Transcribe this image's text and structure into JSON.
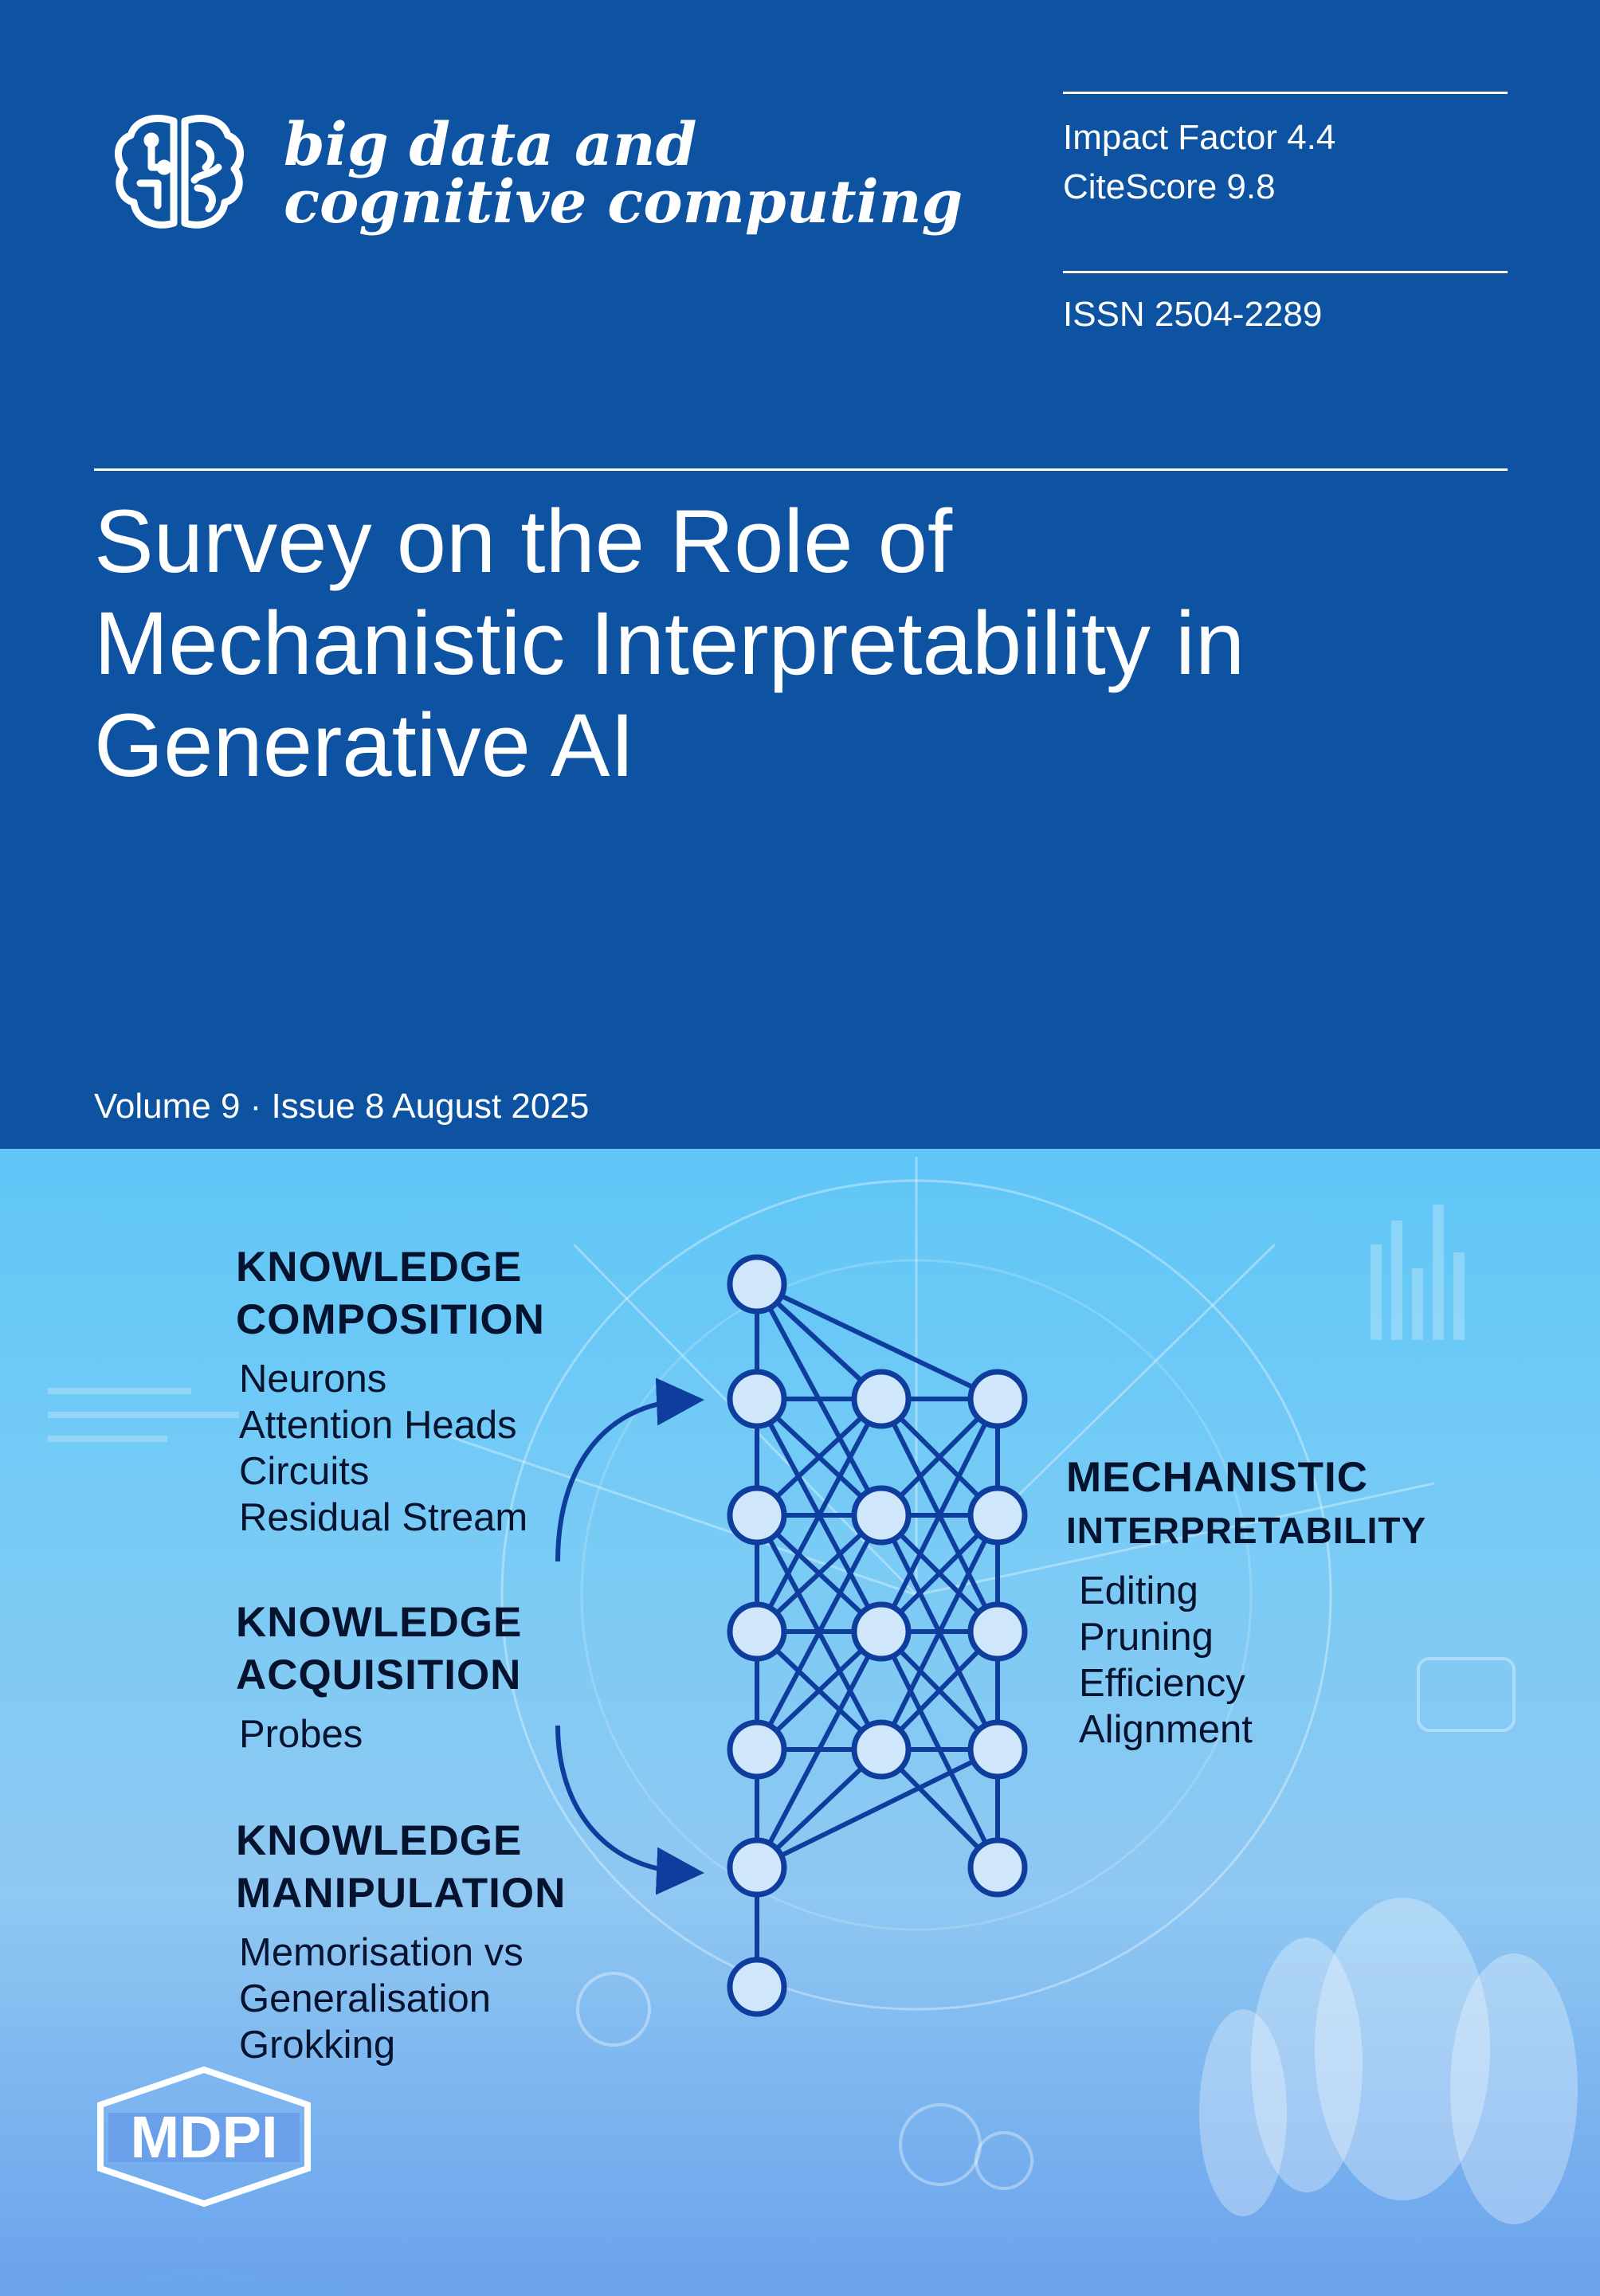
{
  "journal": {
    "name_line1": "big data and",
    "name_line2": "cognitive computing",
    "logo_icon": "brain-icon"
  },
  "metrics": {
    "impact_factor": "Impact Factor 4.4",
    "citescore": "CiteScore 9.8",
    "issn": "ISSN 2504-2289"
  },
  "article": {
    "title_line1": "Survey on the Role of",
    "title_line2": "Mechanistic Interpretability in",
    "title_line3": "Generative AI"
  },
  "issue": {
    "volume_issue": "Volume 9 · Issue 8 August 2025"
  },
  "figure": {
    "composition": {
      "heading_line1": "KNOWLEDGE",
      "heading_line2": "COMPOSITION",
      "items": [
        "Neurons",
        "Attention Heads",
        "Circuits",
        "Residual Stream"
      ]
    },
    "acquisition": {
      "heading_line1": "KNOWLEDGE",
      "heading_line2": "ACQUISITION",
      "items": [
        "Probes"
      ]
    },
    "manipulation": {
      "heading_line1": "KNOWLEDGE",
      "heading_line2": "MANIPULATION",
      "items": [
        "Memorisation vs",
        "Generalisation",
        "Grokking"
      ]
    },
    "mechanistic": {
      "heading_line1": "MECHANISTIC",
      "heading_line2": "INTERPRETABILITY",
      "items": [
        "Editing",
        "Pruning",
        "Efficiency",
        "Alignment"
      ]
    },
    "network_color": "#0f3d9e"
  },
  "publisher": {
    "logo_text": "MDPI"
  },
  "colors": {
    "cover_blue": "#0d53a1",
    "heading_dark": "#06132e"
  }
}
